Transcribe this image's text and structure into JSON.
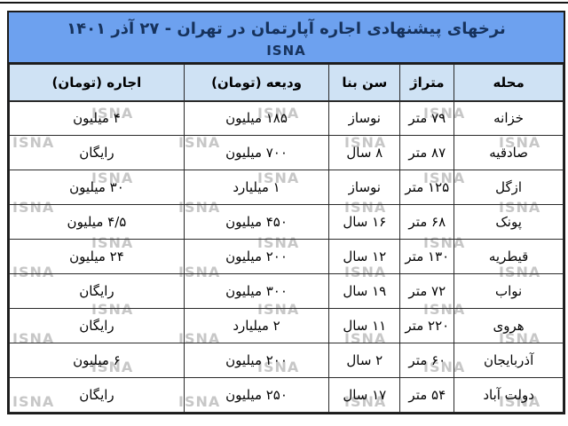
{
  "table": {
    "title": "نرخهای پیشنهادی اجاره آپارتمان در تهران -  ۲۷ آذر ۱۴۰۱",
    "source": "ISNA",
    "watermark": "ISNA",
    "colors": {
      "title_band_bg": "#6da1ef",
      "header_row_bg": "#cfe2f4",
      "title_text": "#16325c",
      "border": "#1b1b1b",
      "watermark_gray": "#c7c7c7"
    },
    "columns": [
      {
        "key": "neighborhood",
        "label": "محله"
      },
      {
        "key": "area",
        "label": "متراژ"
      },
      {
        "key": "age",
        "label": "سن بنا"
      },
      {
        "key": "deposit",
        "label": "ودیعه (تومان)"
      },
      {
        "key": "rent",
        "label": "اجاره (تومان)"
      }
    ],
    "rows": [
      {
        "neighborhood": "خزانه",
        "area": "۷۹ متر",
        "age": "نوساز",
        "deposit": "۱۸۵ میلیون",
        "rent": "۴ میلیون"
      },
      {
        "neighborhood": "صادقیه",
        "area": "۸۷ متر",
        "age": "۸ سال",
        "deposit": "۷۰۰ میلیون",
        "rent": "رایگان"
      },
      {
        "neighborhood": "ازگل",
        "area": "۱۲۵ متر",
        "age": "نوساز",
        "deposit": "۱ میلیارد",
        "rent": "۳۰ میلیون"
      },
      {
        "neighborhood": "پونک",
        "area": "۶۸ متر",
        "age": "۱۶ سال",
        "deposit": "۴۵۰ میلیون",
        "rent": "۴/۵ میلیون"
      },
      {
        "neighborhood": "قیطریه",
        "area": "۱۳۰ متر",
        "age": "۱۲ سال",
        "deposit": "۲۰۰ میلیون",
        "rent": "۲۴ میلیون"
      },
      {
        "neighborhood": "نواب",
        "area": "۷۲ متر",
        "age": "۱۹ سال",
        "deposit": "۳۰۰ میلیون",
        "rent": "رایگان"
      },
      {
        "neighborhood": "هروی",
        "area": "۲۲۰ متر",
        "age": "۱۱ سال",
        "deposit": "۲ میلیارد",
        "rent": "رایگان"
      },
      {
        "neighborhood": "آذربایجان",
        "area": "۶۰ متر",
        "age": "۲ سال",
        "deposit": "۲۰۰ میلیون",
        "rent": "۶ میلیون"
      },
      {
        "neighborhood": "دولت آباد",
        "area": "۵۴ متر",
        "age": "۱۷ سال",
        "deposit": "۲۵۰ میلیون",
        "rent": "رایگان"
      }
    ]
  }
}
